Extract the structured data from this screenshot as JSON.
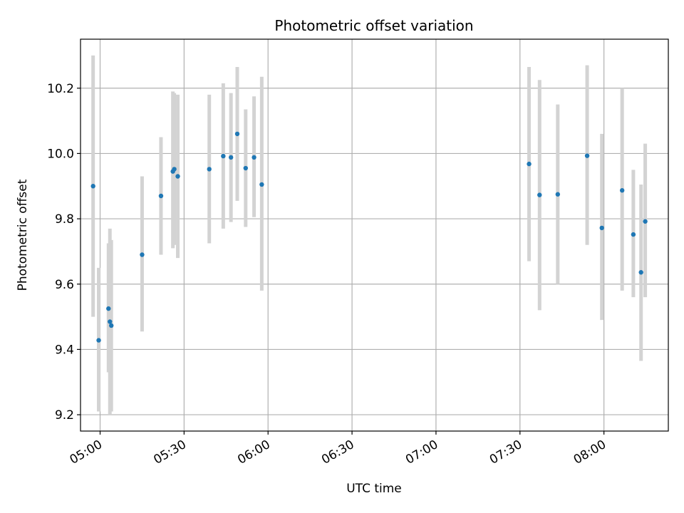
{
  "chart_data": {
    "type": "scatter",
    "title": "Photometric offset variation",
    "xlabel": "UTC time",
    "ylabel": "Photometric offset",
    "x_unit": "UTC time of day",
    "xlim": [
      "04:53",
      "08:23"
    ],
    "ylim": [
      9.15,
      10.35
    ],
    "x_ticks": [
      "05:00",
      "05:30",
      "06:00",
      "06:30",
      "07:00",
      "07:30",
      "08:00"
    ],
    "y_ticks": [
      9.2,
      9.4,
      9.6,
      9.8,
      10.0,
      10.2
    ],
    "y_tick_labels": [
      "9.2",
      "9.4",
      "9.6",
      "9.8",
      "10.0",
      "10.2"
    ],
    "grid": true,
    "colors": {
      "points": "#1f77b4",
      "error_bars": "#d3d3d3",
      "grid": "#b0b0b0"
    },
    "points": [
      {
        "t": "04:57:30",
        "y": 9.9,
        "ylo": 9.5,
        "yhi": 10.3
      },
      {
        "t": "04:59:30",
        "y": 9.428,
        "ylo": 9.21,
        "yhi": 9.65
      },
      {
        "t": "05:03:00",
        "y": 9.525,
        "ylo": 9.33,
        "yhi": 9.725
      },
      {
        "t": "05:03:30",
        "y": 9.485,
        "ylo": 9.2,
        "yhi": 9.77
      },
      {
        "t": "05:04:00",
        "y": 9.473,
        "ylo": 9.21,
        "yhi": 9.735
      },
      {
        "t": "05:15:00",
        "y": 9.69,
        "ylo": 9.455,
        "yhi": 9.93
      },
      {
        "t": "05:21:45",
        "y": 9.87,
        "ylo": 9.69,
        "yhi": 10.05
      },
      {
        "t": "05:26:00",
        "y": 9.945,
        "ylo": 9.71,
        "yhi": 10.19
      },
      {
        "t": "05:26:30",
        "y": 9.952,
        "ylo": 9.72,
        "yhi": 10.185
      },
      {
        "t": "05:27:45",
        "y": 9.93,
        "ylo": 9.68,
        "yhi": 10.18
      },
      {
        "t": "05:39:00",
        "y": 9.952,
        "ylo": 9.725,
        "yhi": 10.18
      },
      {
        "t": "05:44:00",
        "y": 9.992,
        "ylo": 9.77,
        "yhi": 10.215
      },
      {
        "t": "05:46:45",
        "y": 9.988,
        "ylo": 9.79,
        "yhi": 10.185
      },
      {
        "t": "05:49:00",
        "y": 10.06,
        "ylo": 9.855,
        "yhi": 10.265
      },
      {
        "t": "05:52:00",
        "y": 9.955,
        "ylo": 9.775,
        "yhi": 10.135
      },
      {
        "t": "05:55:00",
        "y": 9.988,
        "ylo": 9.805,
        "yhi": 10.175
      },
      {
        "t": "05:57:45",
        "y": 9.905,
        "ylo": 9.58,
        "yhi": 10.235
      },
      {
        "t": "07:33:15",
        "y": 9.968,
        "ylo": 9.67,
        "yhi": 10.265
      },
      {
        "t": "07:37:00",
        "y": 9.873,
        "ylo": 9.52,
        "yhi": 10.225
      },
      {
        "t": "07:43:30",
        "y": 9.875,
        "ylo": 9.6,
        "yhi": 10.15
      },
      {
        "t": "07:54:00",
        "y": 9.993,
        "ylo": 9.72,
        "yhi": 10.27
      },
      {
        "t": "07:59:15",
        "y": 9.772,
        "ylo": 9.49,
        "yhi": 10.06
      },
      {
        "t": "08:06:30",
        "y": 9.887,
        "ylo": 9.58,
        "yhi": 10.2
      },
      {
        "t": "08:10:30",
        "y": 9.752,
        "ylo": 9.56,
        "yhi": 9.95
      },
      {
        "t": "08:13:15",
        "y": 9.636,
        "ylo": 9.365,
        "yhi": 9.905
      },
      {
        "t": "08:14:45",
        "y": 9.792,
        "ylo": 9.56,
        "yhi": 10.03
      }
    ]
  }
}
